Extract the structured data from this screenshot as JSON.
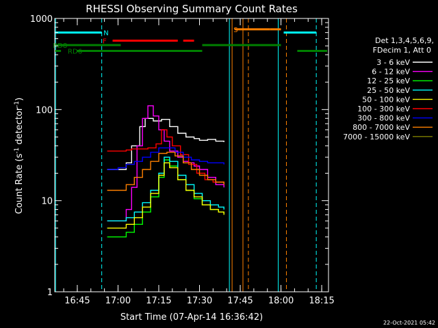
{
  "chart_data": {
    "type": "line",
    "title": "RHESSI Observing Summary Count Rates",
    "xlabel": "Start Time (07-Apr-14 16:36:42)",
    "ylabel_parts": [
      "Count Rate (s",
      "-1",
      " detector",
      "-1",
      ")"
    ],
    "yscale": "log",
    "xlim": [
      "16:36:42",
      "18:17:30"
    ],
    "ylim": [
      1,
      1000
    ],
    "x_ticks": [
      "16:45",
      "17:00",
      "17:15",
      "17:30",
      "17:45",
      "18:00",
      "18:15"
    ],
    "y_ticks": [
      {
        "value": 1,
        "label": "1"
      },
      {
        "value": 10,
        "label": "10"
      },
      {
        "value": 100,
        "label": "100"
      },
      {
        "value": 1000,
        "label": "1000"
      }
    ],
    "grid": false,
    "legend_position": "right",
    "legend_header": [
      "Det 1,3,4,5,6,9,",
      "FDecim 1, Att 0"
    ],
    "footer_date": "22-Oct-2021 05:42",
    "series": [
      {
        "name": "3 - 6 keV",
        "color": "#ffffff",
        "x": [
          "16:56",
          "17:00",
          "17:03",
          "17:05",
          "17:08",
          "17:10",
          "17:13",
          "17:16",
          "17:19",
          "17:22",
          "17:25",
          "17:28",
          "17:30",
          "17:33",
          "17:36",
          "17:39"
        ],
        "y": [
          22,
          22,
          26,
          40,
          65,
          80,
          75,
          78,
          65,
          55,
          50,
          48,
          46,
          47,
          45,
          44
        ]
      },
      {
        "name": "6 - 12 keV",
        "color": "#ff00ff",
        "x": [
          "16:56",
          "17:00",
          "17:03",
          "17:05",
          "17:07",
          "17:09",
          "17:11",
          "17:13",
          "17:15",
          "17:17",
          "17:19",
          "17:22",
          "17:24",
          "17:26",
          "17:28",
          "17:30",
          "17:33",
          "17:36",
          "17:39"
        ],
        "y": [
          6,
          6,
          8,
          14,
          40,
          80,
          110,
          85,
          60,
          45,
          35,
          30,
          27,
          26,
          24,
          22,
          18,
          15,
          14
        ]
      },
      {
        "name": "12 - 25 keV",
        "color": "#00ff00",
        "x": [
          "16:56",
          "17:00",
          "17:03",
          "17:06",
          "17:09",
          "17:12",
          "17:15",
          "17:17",
          "17:19",
          "17:22",
          "17:25",
          "17:28",
          "17:31",
          "17:34",
          "17:37",
          "17:39"
        ],
        "y": [
          4,
          4,
          4.5,
          5.5,
          7.5,
          11,
          18,
          28,
          24,
          17,
          13,
          10.5,
          9,
          8,
          7.5,
          7
        ]
      },
      {
        "name": "25 - 50 keV",
        "color": "#00ffff",
        "x": [
          "16:56",
          "17:00",
          "17:03",
          "17:06",
          "17:09",
          "17:12",
          "17:15",
          "17:17",
          "17:19",
          "17:22",
          "17:25",
          "17:28",
          "17:31",
          "17:34",
          "17:37",
          "17:39"
        ],
        "y": [
          6,
          6,
          6.5,
          7.5,
          9.5,
          13,
          20,
          30,
          27,
          19,
          15,
          12,
          10,
          9,
          8.5,
          8
        ]
      },
      {
        "name": "50 - 100 keV",
        "color": "#ffff00",
        "x": [
          "16:56",
          "17:00",
          "17:03",
          "17:06",
          "17:09",
          "17:12",
          "17:15",
          "17:17",
          "17:19",
          "17:22",
          "17:25",
          "17:28",
          "17:31",
          "17:34",
          "17:37",
          "17:39"
        ],
        "y": [
          5,
          5,
          5.5,
          6.5,
          8.5,
          12,
          19,
          26,
          23,
          17,
          13,
          11,
          9,
          8,
          7.5,
          7
        ]
      },
      {
        "name": "100 - 300 keV",
        "color": "#ff0000",
        "x": [
          "16:56",
          "17:00",
          "17:03",
          "17:05",
          "17:08",
          "17:11",
          "17:14",
          "17:16",
          "17:18",
          "17:20",
          "17:23",
          "17:26",
          "17:29",
          "17:32",
          "17:35",
          "17:39"
        ],
        "y": [
          35,
          35,
          36,
          37,
          37,
          38,
          42,
          60,
          50,
          40,
          32,
          25,
          20,
          17,
          16,
          15
        ]
      },
      {
        "name": "300 - 800 keV",
        "color": "#0000ff",
        "x": [
          "16:56",
          "17:00",
          "17:03",
          "17:06",
          "17:09",
          "17:12",
          "17:15",
          "17:18",
          "17:21",
          "17:24",
          "17:27",
          "17:30",
          "17:33",
          "17:36",
          "17:39"
        ],
        "y": [
          22,
          23,
          25,
          27,
          30,
          34,
          38,
          38,
          34,
          30,
          28,
          27,
          26,
          26,
          25
        ]
      },
      {
        "name": "800 - 7000 keV",
        "color": "#ff8000",
        "x": [
          "16:56",
          "17:00",
          "17:03",
          "17:06",
          "17:09",
          "17:12",
          "17:15",
          "17:18",
          "17:21",
          "17:24",
          "17:27",
          "17:30",
          "17:33",
          "17:36",
          "17:39"
        ],
        "y": [
          13,
          13,
          15,
          18,
          22,
          27,
          33,
          34,
          31,
          26,
          22,
          19,
          17,
          16,
          15
        ]
      },
      {
        "name": "7000 - 15000 keV",
        "color": "#808000",
        "x": [],
        "y": []
      }
    ],
    "flags": [
      {
        "label": "N",
        "color": "#00ffff",
        "label_at": "16:54:40",
        "y": 700,
        "segments": [
          [
            "16:36:42",
            "16:54"
          ],
          [
            "18:01",
            "18:13"
          ]
        ]
      },
      {
        "label": "F",
        "color": "#ff0000",
        "label_at": "16:54:20",
        "y": 570,
        "segments": [
          [
            "16:58",
            "17:22"
          ],
          [
            "17:24",
            "17:28"
          ]
        ]
      },
      {
        "label": "S",
        "color": "#ff8000",
        "label_at": "17:42:30",
        "y": 760,
        "segments": [
          [
            "17:43",
            "17:56"
          ],
          [
            "17:56",
            "18:00"
          ]
        ]
      },
      {
        "label": "RD8",
        "color": "#008000",
        "label_at": "16:36:00",
        "y": 510,
        "segments": [
          [
            "16:36:42",
            "17:01"
          ],
          [
            "17:31",
            "18:00"
          ]
        ]
      },
      {
        "label": "RD6",
        "color": "#008000",
        "label_at": "16:41:30",
        "y": 440,
        "segments": [
          [
            "16:36:42",
            "16:39"
          ],
          [
            "16:45",
            "17:31"
          ],
          [
            "18:06",
            "18:17"
          ]
        ]
      }
    ],
    "night_lines": {
      "color": "#00ffff",
      "solid": [
        "16:37",
        "17:41",
        "17:59"
      ],
      "dashed": [
        "16:54",
        "18:13"
      ]
    },
    "saa_lines": {
      "color": "#ff8000",
      "solid": [
        "17:42",
        "17:46"
      ],
      "dashed": [
        "17:48",
        "18:02"
      ]
    }
  }
}
